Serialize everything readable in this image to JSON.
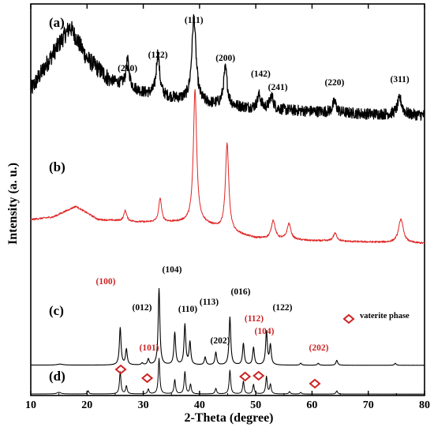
{
  "chart_data": {
    "type": "line",
    "title": "",
    "xlabel": "2-Theta (degree)",
    "ylabel": "Intensity (a. u.)",
    "xlim": [
      10,
      80
    ],
    "x_ticks": [
      "10",
      "20",
      "30",
      "40",
      "50",
      "60",
      "70",
      "80"
    ],
    "y_ticks_shown": false,
    "legend": {
      "label": "vaterite phase",
      "marker": "diamond",
      "color": "#cc2222",
      "position": "right, beside panel (c)"
    },
    "series": [
      {
        "panel": "(a)",
        "color": "#000000",
        "noise": 1.0,
        "baseline": [
          [
            10,
            0.62
          ],
          [
            14,
            0.76
          ],
          [
            17,
            0.86
          ],
          [
            20,
            0.74
          ],
          [
            24,
            0.66
          ],
          [
            30,
            0.61
          ],
          [
            40,
            0.57
          ],
          [
            50,
            0.55
          ],
          [
            60,
            0.54
          ],
          [
            70,
            0.53
          ],
          [
            80,
            0.525
          ]
        ],
        "peaks": [
          {
            "x": 27.2,
            "h": 0.1,
            "w": 0.35,
            "label": "(210)"
          },
          {
            "x": 32.6,
            "h": 0.16,
            "w": 0.35,
            "label": "(122)"
          },
          {
            "x": 39.0,
            "h": 0.32,
            "w": 0.45,
            "label": "(111)"
          },
          {
            "x": 44.6,
            "h": 0.14,
            "w": 0.4,
            "label": "(200)"
          },
          {
            "x": 50.6,
            "h": 0.05,
            "w": 0.4,
            "label": "(142)"
          },
          {
            "x": 52.8,
            "h": 0.05,
            "w": 0.4,
            "label": "(241)"
          },
          {
            "x": 64.0,
            "h": 0.04,
            "w": 0.4,
            "label": "(220)"
          },
          {
            "x": 75.6,
            "h": 0.06,
            "w": 0.5,
            "label": "(311)"
          }
        ]
      },
      {
        "panel": "(b)",
        "color": "#e02424",
        "noise": 0.45,
        "baseline": [
          [
            10,
            0.28
          ],
          [
            14,
            0.29
          ],
          [
            18,
            0.33
          ],
          [
            22,
            0.28
          ],
          [
            30,
            0.27
          ],
          [
            40,
            0.27
          ],
          [
            46,
            0.23
          ],
          [
            50,
            0.21
          ],
          [
            60,
            0.2
          ],
          [
            70,
            0.195
          ],
          [
            80,
            0.19
          ]
        ],
        "peaks": [
          {
            "x": 26.8,
            "h": 0.04,
            "w": 0.3
          },
          {
            "x": 33.0,
            "h": 0.09,
            "w": 0.3
          },
          {
            "x": 39.2,
            "h": 0.5,
            "w": 0.35
          },
          {
            "x": 44.9,
            "h": 0.33,
            "w": 0.35
          },
          {
            "x": 53.1,
            "h": 0.07,
            "w": 0.4
          },
          {
            "x": 55.9,
            "h": 0.06,
            "w": 0.4
          },
          {
            "x": 64.1,
            "h": 0.03,
            "w": 0.4
          },
          {
            "x": 75.8,
            "h": 0.09,
            "w": 0.5
          }
        ]
      },
      {
        "panel": "(c)",
        "color": "#000000",
        "noise": 0.08,
        "baseline": [
          [
            10,
            0.012
          ],
          [
            80,
            0.01
          ]
        ],
        "peaks": [
          {
            "x": 15.2,
            "h": 0.01,
            "w": 0.6
          },
          {
            "x": 25.9,
            "h": 0.38,
            "w": 0.18,
            "label": "(100)",
            "label_color": "red"
          },
          {
            "x": 27.0,
            "h": 0.16,
            "w": 0.18,
            "label": "(012)"
          },
          {
            "x": 29.8,
            "h": 0.02,
            "w": 0.18
          },
          {
            "x": 30.9,
            "h": 0.06,
            "w": 0.18,
            "label": "(101)",
            "label_color": "red"
          },
          {
            "x": 32.8,
            "h": 0.78,
            "w": 0.18,
            "label": "(104)"
          },
          {
            "x": 35.6,
            "h": 0.33,
            "w": 0.18,
            "label": "(110)"
          },
          {
            "x": 37.4,
            "h": 0.41,
            "w": 0.18,
            "label": "(113)"
          },
          {
            "x": 38.3,
            "h": 0.23,
            "w": 0.18
          },
          {
            "x": 41.0,
            "h": 0.08,
            "w": 0.18
          },
          {
            "x": 42.9,
            "h": 0.13,
            "w": 0.18,
            "label": "(202)"
          },
          {
            "x": 45.4,
            "h": 0.49,
            "w": 0.18,
            "label": "(016)"
          },
          {
            "x": 47.8,
            "h": 0.22,
            "w": 0.18,
            "label": "(112)",
            "label_color": "red"
          },
          {
            "x": 49.6,
            "h": 0.18,
            "w": 0.18,
            "label": "(104)",
            "label_color": "red"
          },
          {
            "x": 51.9,
            "h": 0.34,
            "w": 0.18,
            "label": "(122)"
          },
          {
            "x": 52.6,
            "h": 0.2,
            "w": 0.18
          },
          {
            "x": 58.0,
            "h": 0.02,
            "w": 0.18
          },
          {
            "x": 61.1,
            "h": 0.02,
            "w": 0.18,
            "label": "(202)",
            "label_color": "red"
          },
          {
            "x": 64.4,
            "h": 0.05,
            "w": 0.18
          },
          {
            "x": 74.8,
            "h": 0.02,
            "w": 0.18
          }
        ]
      },
      {
        "panel": "(d)",
        "color": "#000000",
        "noise": 0.06,
        "baseline": [
          [
            10,
            0.01
          ],
          [
            80,
            0.008
          ]
        ],
        "peaks": [
          {
            "x": 15.0,
            "h": 0.02,
            "w": 0.4
          },
          {
            "x": 20.2,
            "h": 0.04,
            "w": 0.15
          },
          {
            "x": 25.9,
            "h": 0.28,
            "w": 0.16
          },
          {
            "x": 27.0,
            "h": 0.1,
            "w": 0.16
          },
          {
            "x": 30.9,
            "h": 0.06,
            "w": 0.16
          },
          {
            "x": 32.8,
            "h": 0.45,
            "w": 0.16
          },
          {
            "x": 35.6,
            "h": 0.18,
            "w": 0.16
          },
          {
            "x": 37.4,
            "h": 0.28,
            "w": 0.16
          },
          {
            "x": 38.4,
            "h": 0.12,
            "w": 0.16
          },
          {
            "x": 42.9,
            "h": 0.07,
            "w": 0.16
          },
          {
            "x": 45.4,
            "h": 0.3,
            "w": 0.16
          },
          {
            "x": 47.8,
            "h": 0.16,
            "w": 0.16
          },
          {
            "x": 49.6,
            "h": 0.12,
            "w": 0.16
          },
          {
            "x": 51.9,
            "h": 0.22,
            "w": 0.16
          },
          {
            "x": 52.6,
            "h": 0.12,
            "w": 0.16
          },
          {
            "x": 56.0,
            "h": 0.03,
            "w": 0.16
          },
          {
            "x": 58.0,
            "h": 0.02,
            "w": 0.16
          },
          {
            "x": 64.4,
            "h": 0.04,
            "w": 0.16
          }
        ]
      }
    ],
    "vaterite_markers": [
      {
        "panel": "(d)",
        "x": 26.0
      },
      {
        "panel": "(d)",
        "x": 30.7
      },
      {
        "panel": "(d)",
        "x": 48.1
      },
      {
        "panel": "(d)",
        "x": 50.5
      },
      {
        "panel": "(d)",
        "x": 60.5
      }
    ]
  }
}
